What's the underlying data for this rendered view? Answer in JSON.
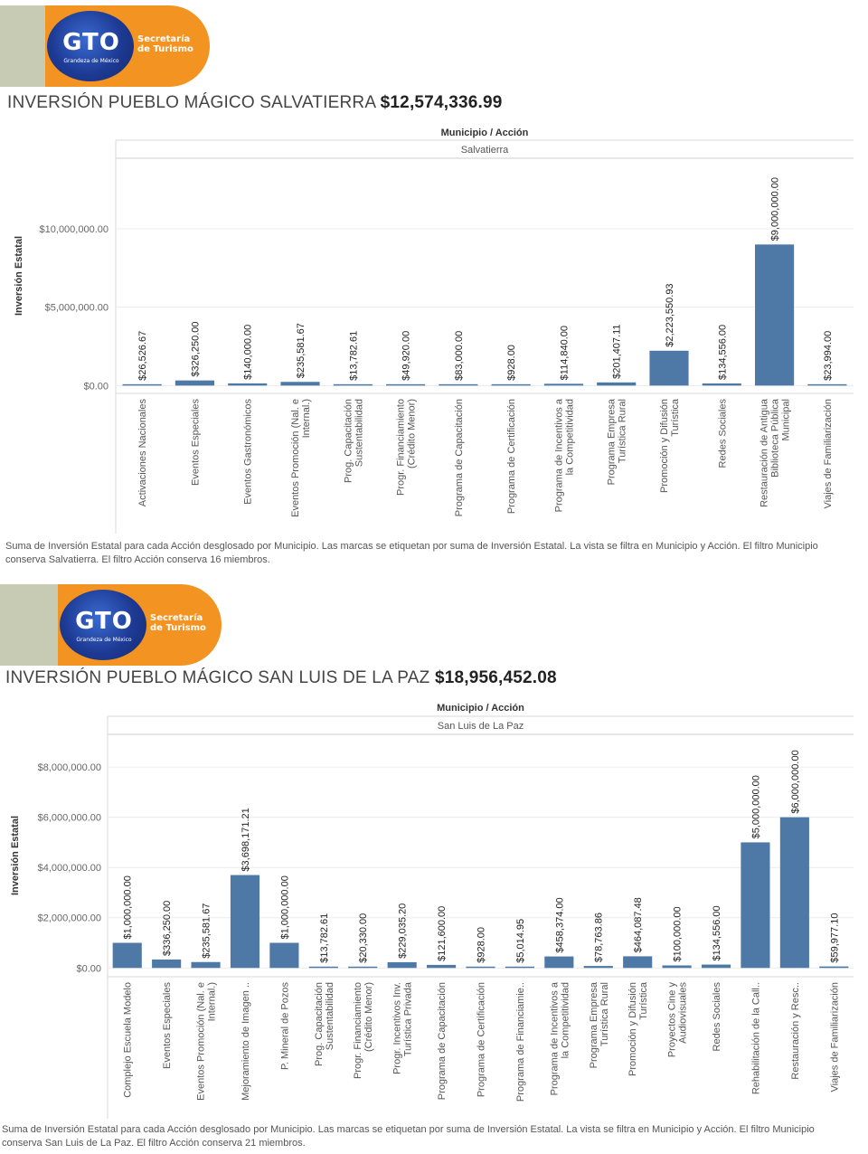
{
  "logo": {
    "brand": "GTO",
    "tagline": "Grandeza de México",
    "secretaria_line1": "Secretaría",
    "secretaria_line2": "de Turismo"
  },
  "sections": [
    {
      "title_prefix": "INVERSIÓN PUEBLO MÁGICO SALVATIERRA",
      "title_amount": "$12,574,336.99",
      "footnote": "Suma de Inversión Estatal para cada Acción desglosado por Municipio.  Las marcas se etiquetan por suma de Inversión Estatal. La vista se filtra en Municipio y Acción. El filtro Municipio conserva Salvatierra. El filtro Acción conserva 16 miembros."
    },
    {
      "title_prefix": "INVERSIÓN PUEBLO MÁGICO SAN LUIS DE LA PAZ",
      "title_amount": "$18,956,452.08",
      "footnote": "Suma de Inversión Estatal para cada Acción desglosado por Municipio.  Las marcas se etiquetan por suma de Inversión Estatal. La vista se filtra en Municipio y Acción. El filtro Municipio conserva San Luis de La Paz. El filtro Acción conserva 21 miembros."
    }
  ],
  "chart_data": [
    {
      "type": "bar",
      "header": "Municipio  /  Acción",
      "panel": "Salvatierra",
      "ylabel": "Inversión Estatal",
      "ylim": [
        -500000,
        14500000
      ],
      "ticks": [
        0,
        5000000,
        10000000
      ],
      "tick_labels": [
        "$0.00",
        "$5,000,000.00",
        "$10,000,000.00"
      ],
      "color": "#4e79a7",
      "grid": true,
      "categories": [
        [
          "Activaciones Nacionales"
        ],
        [
          "Eventos Especiales"
        ],
        [
          "Eventos Gastronómicos"
        ],
        [
          "Eventos Promoción (Nal. e",
          "Internal.)"
        ],
        [
          "Prog. Capacitación",
          "Sustentabilidad"
        ],
        [
          "Progr. Financiamiento",
          "(Crédito Menor)"
        ],
        [
          "Programa de Capacitación"
        ],
        [
          "Programa de Certificación"
        ],
        [
          "Programa de Incentivos a",
          "la Competitividad"
        ],
        [
          "Programa Empresa",
          "Turística Rural"
        ],
        [
          "Promoción y Difusión",
          "Turística"
        ],
        [
          "Redes Sociales"
        ],
        [
          "Restauración de Antigua",
          "Biblioteca Pública",
          "Municipal"
        ],
        [
          "Viajes de Familiarización"
        ]
      ],
      "values": [
        26526.67,
        326250.0,
        140000.0,
        235581.67,
        13782.61,
        49920.0,
        83000.0,
        928.0,
        114840.0,
        201407.11,
        2223550.93,
        134556.0,
        9000000.0,
        23994.0
      ],
      "labels": [
        "$26,526.67",
        "$326,250.00",
        "$140,000.00",
        "$235,581.67",
        "$13,782.61",
        "$49,920.00",
        "$83,000.00",
        "$928.00",
        "$114,840.00",
        "$201,407.11",
        "$2,223,550.93",
        "$134,556.00",
        "$9,000,000.00",
        "$23,994.00"
      ]
    },
    {
      "type": "bar",
      "header": "Municipio  /  Acción",
      "panel": "San Luis de La Paz",
      "ylabel": "Inversión Estatal",
      "ylim": [
        -350000,
        9300000
      ],
      "ticks": [
        0,
        2000000,
        4000000,
        6000000,
        8000000
      ],
      "tick_labels": [
        "$0.00",
        "$2,000,000.00",
        "$4,000,000.00",
        "$6,000,000.00",
        "$8,000,000.00"
      ],
      "color": "#4e79a7",
      "grid": true,
      "categories": [
        [
          "Complejo Escuela Modelo"
        ],
        [
          "Eventos Especiales"
        ],
        [
          "Eventos Promoción (Nal. e",
          "Internal.)"
        ],
        [
          "Mejoramiento de Imagen .."
        ],
        [
          "P. Mineral de Pozos"
        ],
        [
          "Prog. Capacitación",
          "Sustentabilidad"
        ],
        [
          "Progr. Financiamiento",
          "(Crédito Menor)"
        ],
        [
          "Progr. Incentivos Inv.",
          "Turística Privada"
        ],
        [
          "Programa de Capacitación"
        ],
        [
          "Programa de Certificación"
        ],
        [
          "Programa de Financiamie.."
        ],
        [
          "Programa de Incentivos a",
          "la Competitividad"
        ],
        [
          "Programa Empresa",
          "Turística Rural"
        ],
        [
          "Promoción y Difusión",
          "Turística"
        ],
        [
          "Proyectos Cine y",
          "Audiovisuales"
        ],
        [
          "Redes Sociales"
        ],
        [
          "Rehabilitación de la Call.."
        ],
        [
          "Restauración y Resc.."
        ],
        [
          "Viajes de Familiarización"
        ]
      ],
      "values": [
        1000000.0,
        336250.0,
        235581.67,
        3698171.21,
        1000000.0,
        13782.61,
        20330.0,
        229035.2,
        121600.0,
        928.0,
        5014.95,
        458374.0,
        78763.86,
        464087.48,
        100000.0,
        134556.0,
        5000000.0,
        6000000.0,
        59977.1
      ],
      "labels": [
        "$1,000,000.00",
        "$336,250.00",
        "$235,581.67",
        "$3,698,171.21",
        "$1,000,000.00",
        "$13,782.61",
        "$20,330.00",
        "$229,035.20",
        "$121,600.00",
        "$928.00",
        "$5,014.95",
        "$458,374.00",
        "$78,763.86",
        "$464,087.48",
        "$100,000.00",
        "$134,556.00",
        "$5,000,000.00",
        "$6,000,000.00",
        "$59,977.10"
      ]
    }
  ]
}
